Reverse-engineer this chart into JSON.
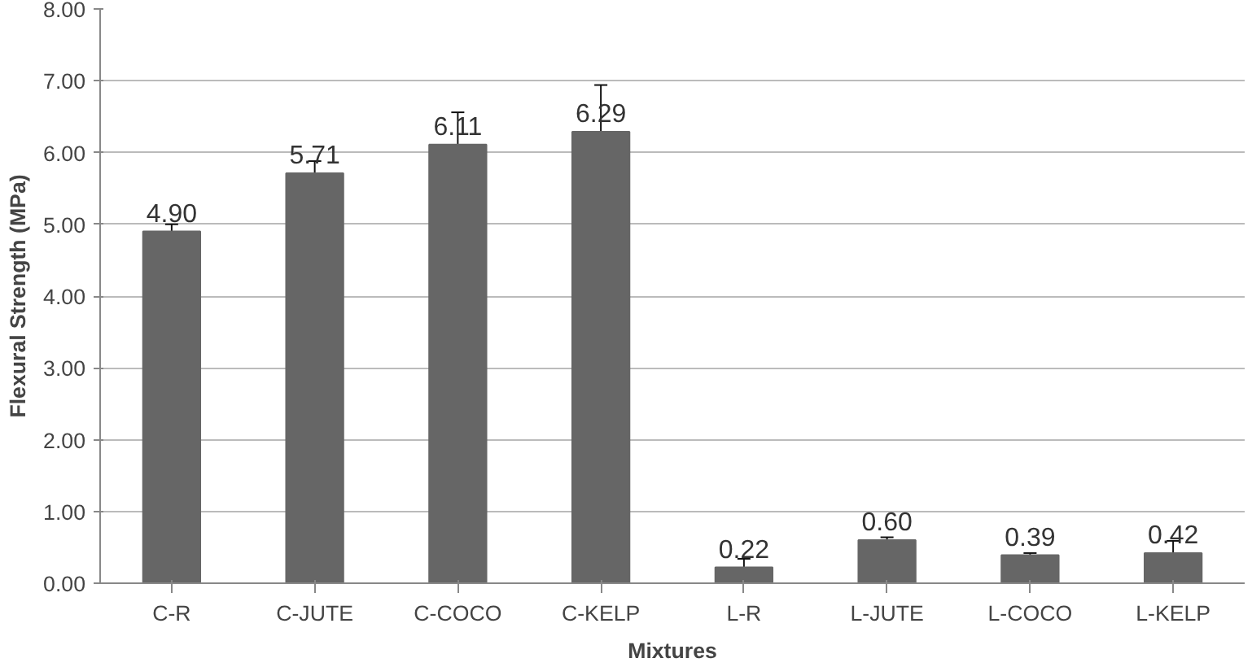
{
  "chart_data": {
    "type": "bar",
    "xlabel": "Mixtures",
    "ylabel": "Flexural Strength (MPa)",
    "categories": [
      "C-R",
      "C-JUTE",
      "C-COCO",
      "C-KELP",
      "L-R",
      "L-JUTE",
      "L-COCO",
      "L-KELP"
    ],
    "values": [
      4.9,
      5.71,
      6.11,
      6.29,
      0.22,
      0.6,
      0.39,
      0.42
    ],
    "errors": [
      0.1,
      0.17,
      0.45,
      0.65,
      0.12,
      0.04,
      0.03,
      0.17
    ],
    "value_labels": [
      "4.90",
      "5.71",
      "6.11",
      "6.29",
      "0.22",
      "0.60",
      "0.39",
      "0.42"
    ],
    "color": "#666666",
    "grid": "y",
    "ylim": [
      0,
      8
    ],
    "yticks": [
      {
        "value": 0,
        "label": "0.00"
      },
      {
        "value": 1,
        "label": "1.00"
      },
      {
        "value": 2,
        "label": "2.00"
      },
      {
        "value": 3,
        "label": "3.00"
      },
      {
        "value": 4,
        "label": "4.00"
      },
      {
        "value": 5,
        "label": "5.00"
      },
      {
        "value": 6,
        "label": "6.00"
      },
      {
        "value": 7,
        "label": "7.00"
      },
      {
        "value": 8,
        "label": "8.00"
      }
    ]
  }
}
